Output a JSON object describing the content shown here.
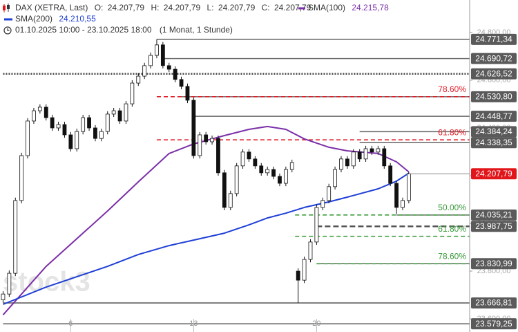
{
  "chart_data": {
    "type": "candlestick",
    "header": {
      "title": "DAX (XETRA, Last)",
      "ohlc": [
        {
          "key": "O:",
          "value": "24.207,79"
        },
        {
          "key": "H:",
          "value": "24.207,79"
        },
        {
          "key": "L:",
          "value": "24.207,79"
        },
        {
          "key": "C:",
          "value": "24.207,79"
        }
      ],
      "period": "01.10.2025 10:00 - 23.10.2025 18:00",
      "span": "(1 Monat, 1 Stunde)"
    },
    "watermark": "stock3",
    "xlim": [
      -0.5,
      75.9
    ],
    "ylim": [
      23545,
      24936
    ],
    "xticks": [
      {
        "value": 11,
        "label": "6"
      },
      {
        "value": 31,
        "label": "13"
      },
      {
        "value": 51,
        "label": "20"
      }
    ],
    "yticks": [
      {
        "value": 23600,
        "label": "23.600,00"
      },
      {
        "value": 23800,
        "label": "23.800,00"
      },
      {
        "value": 24000,
        "label": "24.000,00"
      },
      {
        "value": 24200,
        "label": "24.200,00"
      },
      {
        "value": 24400,
        "label": "24.400,00"
      },
      {
        "value": 24600,
        "label": "24.600,00"
      },
      {
        "value": 24800,
        "label": "24.800,00"
      }
    ],
    "up_color": "#ffffff",
    "down_color": "#111111",
    "candles": {
      "open": [
        23680,
        23704,
        23791,
        24096,
        24284,
        24429,
        24472,
        24487,
        24443,
        24400,
        24414,
        24371,
        24313,
        24385,
        24443,
        24400,
        24356,
        24385,
        24458,
        24472,
        24429,
        24501,
        24588,
        24617,
        24661,
        24704,
        24748,
        24661,
        24646,
        24603,
        24574,
        24516,
        24284,
        24371,
        24342,
        24356,
        24212,
        24067,
        24125,
        24241,
        24299,
        24270,
        24241,
        24212,
        24226,
        24197,
        24168,
        24226,
        23800,
        23762,
        23849,
        23922,
        24067,
        24096,
        24154,
        24226,
        24270,
        24241,
        24299,
        24270,
        24313,
        24299,
        24313,
        24241,
        24168,
        24067,
        24096
      ],
      "high": [
        23716,
        23803,
        24108,
        24296,
        24441,
        24484,
        24499,
        24499,
        24455,
        24426,
        24426,
        24383,
        24397,
        24455,
        24455,
        24412,
        24397,
        24470,
        24484,
        24484,
        24513,
        24600,
        24629,
        24673,
        24716,
        24771.34,
        24760,
        24673,
        24658,
        24615,
        24586,
        24528,
        24383,
        24383,
        24368,
        24368,
        24224,
        24137,
        24253,
        24311,
        24311,
        24282,
        24253,
        24238,
        24238,
        24209,
        24238,
        24267,
        23812,
        23861,
        23934,
        24079,
        24108,
        24166,
        24238,
        24282,
        24282,
        24311,
        24311,
        24325,
        24325,
        24325,
        24325,
        24253,
        24179,
        24108,
        24215
      ],
      "low": [
        23668,
        23692,
        23779,
        24084,
        24272,
        24417,
        24460,
        24431,
        24388,
        24388,
        24359,
        24301,
        24301,
        24373,
        24388,
        24344,
        24344,
        24373,
        24446,
        24417,
        24417,
        24489,
        24576,
        24605,
        24649,
        24692,
        24649,
        24634,
        24591,
        24562,
        24504,
        24272,
        24272,
        24330,
        24330,
        24200,
        24055,
        24055,
        24113,
        24229,
        24258,
        24229,
        24200,
        24200,
        24185,
        24156,
        24156,
        24214,
        23666.81,
        23750,
        23837,
        23910,
        24055,
        24084,
        24142,
        24214,
        24229,
        24229,
        24258,
        24258,
        24287,
        24287,
        24229,
        24156,
        24040,
        24055,
        24084
      ],
      "close": [
        23704,
        23791,
        24096,
        24284,
        24429,
        24472,
        24487,
        24443,
        24400,
        24414,
        24371,
        24313,
        24385,
        24443,
        24400,
        24356,
        24385,
        24458,
        24472,
        24429,
        24501,
        24588,
        24617,
        24661,
        24704,
        24748,
        24661,
        24646,
        24603,
        24574,
        24516,
        24284,
        24371,
        24342,
        24356,
        24212,
        24067,
        24125,
        24241,
        24299,
        24270,
        24241,
        24212,
        24226,
        24197,
        24168,
        24226,
        24255,
        23762,
        23849,
        23922,
        24067,
        24096,
        24154,
        24226,
        24270,
        24241,
        24299,
        24270,
        24313,
        24299,
        24313,
        24241,
        24168,
        24067,
        24096,
        24207.79
      ]
    },
    "series": [
      {
        "name": "SMA(100)",
        "color": "#7b2fa8",
        "value_label": "24.215,78",
        "x": [
          0,
          7,
          17,
          22,
          27,
          31,
          36,
          40,
          43,
          46,
          49,
          53,
          56,
          61,
          64,
          66
        ],
        "values": [
          23617,
          23820,
          24052,
          24174,
          24293,
          24333,
          24368,
          24394,
          24406,
          24394,
          24354,
          24319,
          24304,
          24293,
          24258,
          24215.78
        ]
      },
      {
        "name": "SMA(200)",
        "color": "#1e3fd6",
        "value_label": "24.210,55",
        "x": [
          0,
          7,
          17,
          22,
          27,
          31,
          36,
          40,
          43,
          46,
          49,
          53,
          56,
          61,
          64,
          66
        ],
        "values": [
          23661,
          23733,
          23820,
          23870,
          23907,
          23930,
          23959,
          23994,
          24023,
          24043,
          24067,
          24090,
          24110,
          24145,
          24177,
          24210.55
        ]
      }
    ],
    "levels": [
      {
        "value": 24771.34,
        "label": "24.771,34",
        "from": 25,
        "color": "#666666",
        "style": "solid"
      },
      {
        "value": 24690.72,
        "label": "24.690,72",
        "from": 26,
        "color": "#666666",
        "style": "solid"
      },
      {
        "value": 24626.52,
        "label": "24.626,52",
        "from": 0,
        "color": "#444444",
        "style": "dotted"
      },
      {
        "value": 24530.8,
        "label": "24.530,80",
        "from": 29,
        "color": "#666666",
        "style": "solid"
      },
      {
        "value": 24448.77,
        "label": "24.448,77",
        "from": 31,
        "color": "#666666",
        "style": "solid"
      },
      {
        "value": 24384.24,
        "label": "24.384,24",
        "from": 58,
        "color": "#666666",
        "style": "solid"
      },
      {
        "value": 24338.35,
        "label": "24.338,35",
        "from": 58,
        "color": "#666666",
        "style": "solid"
      },
      {
        "value": 24035.21,
        "label": "24.035,21",
        "from": 64,
        "color": "#666666",
        "style": "solid"
      },
      {
        "value": 23987.75,
        "label": "23.987,75",
        "from": 51,
        "color": "#555555",
        "style": "dashed"
      },
      {
        "value": 23830.99,
        "label": "23.830,99",
        "from": 51,
        "color": "#666666",
        "style": "solid"
      },
      {
        "value": 23666.81,
        "label": "23.666,81",
        "from": 0,
        "color": "#555555",
        "style": "solid"
      },
      {
        "value": 23579.25,
        "label": "23.579,25",
        "from": 0,
        "color": "#666666",
        "style": "solid"
      }
    ],
    "last": {
      "value": 24207.79,
      "label": "24.207,79",
      "color": "#e0161b"
    },
    "fibs": [
      {
        "value": 24530.8,
        "label": "78.60%",
        "from": 25,
        "color": "#e0202a"
      },
      {
        "value": 24350,
        "label": "61.80%",
        "from": 25,
        "color": "#e0202a"
      },
      {
        "value": 24035.21,
        "label": "50.00%",
        "from": 47.5,
        "color": "#3a9a3a"
      },
      {
        "value": 23946,
        "label": "61.80%",
        "from": 47.5,
        "color": "#3a9a3a"
      },
      {
        "value": 23830.99,
        "label": "78.60%",
        "from": 51,
        "color": "#3a9a3a"
      }
    ]
  }
}
